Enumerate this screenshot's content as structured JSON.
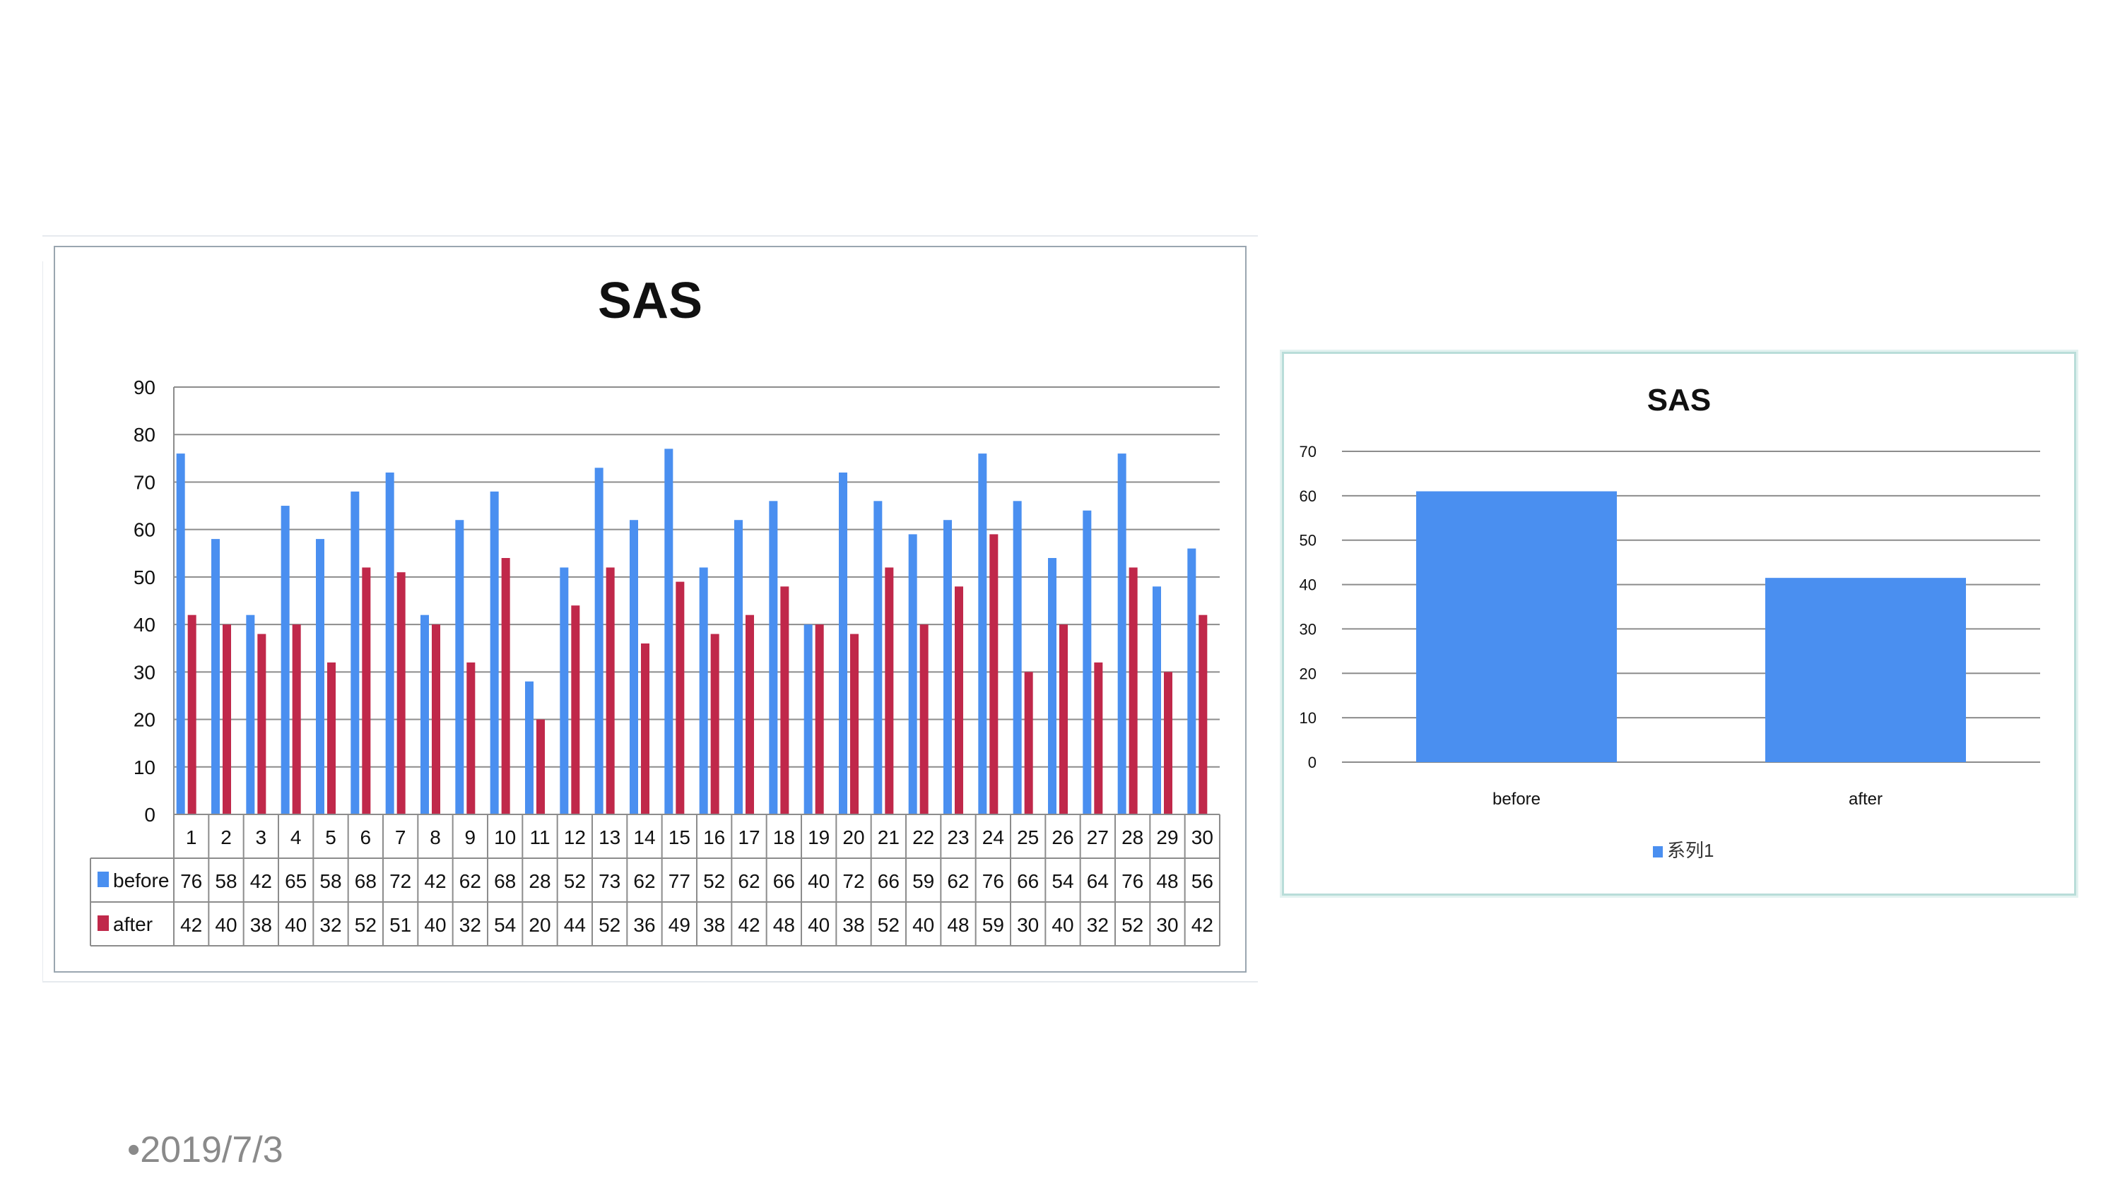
{
  "footer": {
    "date": "•2019/7/3"
  },
  "colors": {
    "before": "#4a8ff0",
    "after": "#c0284a",
    "grid": "#8c8c8c"
  },
  "chart_data": [
    {
      "type": "bar",
      "title": "SAS",
      "categories": [
        "1",
        "2",
        "3",
        "4",
        "5",
        "6",
        "7",
        "8",
        "9",
        "10",
        "11",
        "12",
        "13",
        "14",
        "15",
        "16",
        "17",
        "18",
        "19",
        "20",
        "21",
        "22",
        "23",
        "24",
        "25",
        "26",
        "27",
        "28",
        "29",
        "30"
      ],
      "series": [
        {
          "name": "before",
          "color": "#4a8ff0",
          "values": [
            76,
            58,
            42,
            65,
            58,
            68,
            72,
            42,
            62,
            68,
            28,
            52,
            73,
            62,
            77,
            52,
            62,
            66,
            40,
            72,
            66,
            59,
            62,
            76,
            66,
            54,
            64,
            76,
            48,
            56
          ]
        },
        {
          "name": "after",
          "color": "#c0284a",
          "values": [
            42,
            40,
            38,
            40,
            32,
            52,
            51,
            40,
            32,
            54,
            20,
            44,
            52,
            36,
            49,
            38,
            42,
            48,
            40,
            38,
            52,
            40,
            48,
            59,
            30,
            40,
            32,
            52,
            30,
            42
          ]
        }
      ],
      "ylim": [
        0,
        90
      ],
      "yticks": [
        0,
        10,
        20,
        30,
        40,
        50,
        60,
        70,
        80,
        90
      ],
      "grid": true,
      "legend": "data-table"
    },
    {
      "type": "bar",
      "title": "SAS",
      "categories": [
        "before",
        "after"
      ],
      "series": [
        {
          "name": "系列1",
          "color": "#4a8ff0",
          "values": [
            61,
            41.5
          ]
        }
      ],
      "ylim": [
        0,
        70
      ],
      "yticks": [
        0,
        10,
        20,
        30,
        40,
        50,
        60,
        70
      ],
      "grid": true,
      "legend": "bottom"
    }
  ]
}
